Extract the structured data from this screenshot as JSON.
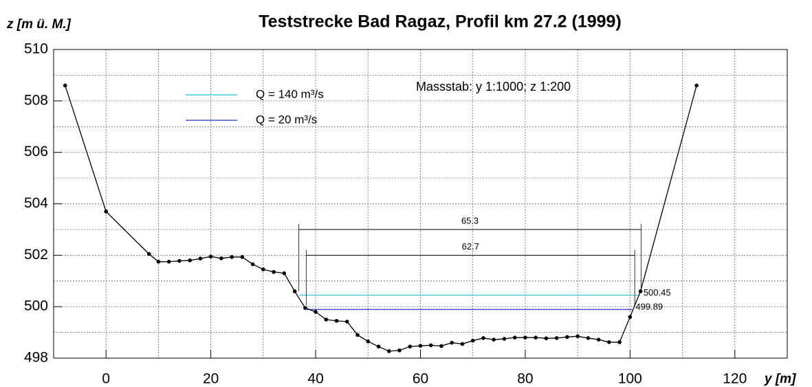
{
  "chart_data": {
    "type": "line",
    "title": "Teststrecke Bad Ragaz, Profil km 27.2 (1999)",
    "y_label": "z [m ü. M.]",
    "x_label": "y [m]",
    "annotation": "Massstab: y 1:1000; z 1:200",
    "xlim": [
      -10,
      130
    ],
    "ylim": [
      498,
      510
    ],
    "xticks": [
      0,
      20,
      40,
      60,
      80,
      100,
      120
    ],
    "yticks": [
      498,
      500,
      502,
      504,
      506,
      508,
      510
    ],
    "xgrid": [
      0,
      10,
      20,
      30,
      40,
      50,
      60,
      70,
      80,
      90,
      100,
      110,
      120
    ],
    "ygrid": [
      499,
      500,
      501,
      502,
      503,
      504,
      505,
      506,
      507,
      508,
      509
    ],
    "grid": true,
    "legend": "upper left",
    "series": [
      {
        "color": "#000000",
        "x": [
          -7.8,
          0,
          8.2,
          10,
          12,
          14,
          16,
          18,
          20,
          22,
          24,
          26,
          28,
          30,
          32,
          34,
          36,
          38,
          40,
          42,
          44,
          46,
          48,
          50,
          52,
          54,
          56,
          58,
          60,
          62,
          64,
          66,
          68,
          70,
          72,
          74,
          76,
          78,
          80,
          82,
          84,
          86,
          88,
          90,
          92,
          94,
          96,
          98,
          100,
          102,
          112.7
        ],
        "values": [
          508.6,
          503.7,
          502.05,
          501.75,
          501.75,
          501.78,
          501.8,
          501.87,
          501.95,
          501.88,
          501.93,
          501.93,
          501.65,
          501.45,
          501.35,
          501.3,
          500.6,
          499.95,
          499.8,
          499.5,
          499.45,
          499.42,
          498.9,
          498.65,
          498.45,
          498.27,
          498.3,
          498.45,
          498.48,
          498.5,
          498.47,
          498.6,
          498.55,
          498.68,
          498.78,
          498.72,
          498.75,
          498.8,
          498.8,
          498.8,
          498.77,
          498.78,
          498.82,
          498.85,
          498.78,
          498.72,
          498.62,
          498.62,
          499.6,
          500.6,
          508.6
        ]
      }
    ],
    "water_levels": [
      {
        "name": "Q = 140 m³/s",
        "color": "#1fbfdc",
        "value": 500.45,
        "x": [
          36.9,
          101.9
        ]
      },
      {
        "name": "Q = 20 m³/s",
        "color": "#2233cc",
        "value": 499.89,
        "x": [
          38.3,
          100.4
        ]
      }
    ],
    "dimensions": [
      {
        "value": 65.3,
        "z": 503,
        "x": [
          36.8,
          102.1
        ]
      },
      {
        "value": 62.7,
        "z": 502,
        "x": [
          38.2,
          100.9
        ]
      }
    ]
  }
}
